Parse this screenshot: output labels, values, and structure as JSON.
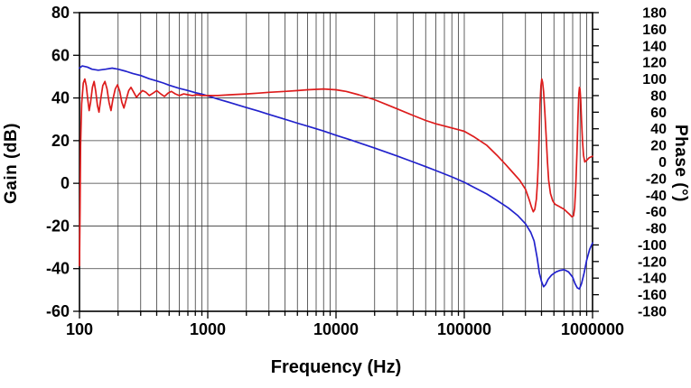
{
  "chart": {
    "x_axis_title": "Frequency (Hz)",
    "y_left_title": "Gain (dB)",
    "y_right_title": "Phase (°)"
  },
  "chart_data": {
    "type": "line",
    "title": "",
    "x_scale": "log",
    "xlabel": "Frequency (Hz)",
    "x_range": [
      100,
      1000000
    ],
    "x_tick_labels": [
      "100",
      "1000",
      "10000",
      "100000",
      "1000000"
    ],
    "grid": true,
    "grid_color": "#3a3a3a",
    "y_left": {
      "label": "Gain (dB)",
      "range": [
        -60,
        80
      ],
      "tick_step": 20,
      "tick_labels": [
        "80",
        "60",
        "40",
        "20",
        "0",
        "-20",
        "-40",
        "-60"
      ]
    },
    "y_right": {
      "label": "Phase (°)",
      "range": [
        -180,
        180
      ],
      "tick_step": 20,
      "tick_labels": [
        "180",
        "160",
        "140",
        "120",
        "100",
        "80",
        "60",
        "40",
        "20",
        "0",
        "-20",
        "-40",
        "-60",
        "-80",
        "-100",
        "-120",
        "-140",
        "-160",
        "-180"
      ]
    },
    "series": [
      {
        "name": "Gain",
        "axis": "left",
        "color": "#2222cc",
        "points": [
          [
            100,
            54
          ],
          [
            105,
            55
          ],
          [
            115,
            54.5
          ],
          [
            125,
            53.5
          ],
          [
            140,
            53
          ],
          [
            160,
            53.5
          ],
          [
            180,
            54
          ],
          [
            200,
            53.5
          ],
          [
            230,
            52.5
          ],
          [
            260,
            51.5
          ],
          [
            300,
            50.5
          ],
          [
            350,
            49
          ],
          [
            400,
            48
          ],
          [
            450,
            47
          ],
          [
            500,
            46
          ],
          [
            600,
            44.5
          ],
          [
            700,
            43.5
          ],
          [
            800,
            42.5
          ],
          [
            900,
            41.8
          ],
          [
            1000,
            41
          ],
          [
            1200,
            39.5
          ],
          [
            1500,
            37.8
          ],
          [
            2000,
            35.5
          ],
          [
            2500,
            33.8
          ],
          [
            3000,
            32.3
          ],
          [
            4000,
            30
          ],
          [
            5000,
            28.2
          ],
          [
            6000,
            26.8
          ],
          [
            8000,
            24.5
          ],
          [
            10000,
            22.5
          ],
          [
            13000,
            20.3
          ],
          [
            16000,
            18.5
          ],
          [
            20000,
            16.5
          ],
          [
            25000,
            14.5
          ],
          [
            30000,
            12.8
          ],
          [
            40000,
            10
          ],
          [
            50000,
            7.8
          ],
          [
            60000,
            6
          ],
          [
            80000,
            3
          ],
          [
            100000,
            0.5
          ],
          [
            120000,
            -2
          ],
          [
            150000,
            -5
          ],
          [
            180000,
            -8
          ],
          [
            220000,
            -11.5
          ],
          [
            260000,
            -15
          ],
          [
            300000,
            -19
          ],
          [
            330000,
            -23
          ],
          [
            350000,
            -27
          ],
          [
            370000,
            -35
          ],
          [
            385000,
            -42
          ],
          [
            400000,
            -46
          ],
          [
            415000,
            -48.5
          ],
          [
            430000,
            -47.5
          ],
          [
            450000,
            -45
          ],
          [
            480000,
            -43
          ],
          [
            520000,
            -41.5
          ],
          [
            560000,
            -40.8
          ],
          [
            600000,
            -40.5
          ],
          [
            650000,
            -41.5
          ],
          [
            700000,
            -44
          ],
          [
            730000,
            -47
          ],
          [
            760000,
            -49
          ],
          [
            790000,
            -49.5
          ],
          [
            820000,
            -47
          ],
          [
            860000,
            -42
          ],
          [
            900000,
            -36
          ],
          [
            950000,
            -31
          ],
          [
            1000000,
            -28
          ]
        ]
      },
      {
        "name": "Phase",
        "axis": "right",
        "color": "#dd1c1c",
        "points": [
          [
            100,
            -125
          ],
          [
            101,
            -60
          ],
          [
            102,
            20
          ],
          [
            104,
            70
          ],
          [
            107,
            95
          ],
          [
            110,
            100
          ],
          [
            113,
            92
          ],
          [
            116,
            75
          ],
          [
            119,
            62
          ],
          [
            122,
            72
          ],
          [
            126,
            90
          ],
          [
            130,
            97
          ],
          [
            134,
            85
          ],
          [
            138,
            68
          ],
          [
            142,
            60
          ],
          [
            147,
            78
          ],
          [
            152,
            92
          ],
          [
            158,
            97
          ],
          [
            164,
            88
          ],
          [
            170,
            72
          ],
          [
            176,
            62
          ],
          [
            182,
            75
          ],
          [
            190,
            88
          ],
          [
            198,
            93
          ],
          [
            206,
            85
          ],
          [
            214,
            72
          ],
          [
            222,
            65
          ],
          [
            232,
            76
          ],
          [
            242,
            86
          ],
          [
            252,
            90
          ],
          [
            265,
            84
          ],
          [
            278,
            78
          ],
          [
            292,
            82
          ],
          [
            310,
            86
          ],
          [
            330,
            84
          ],
          [
            350,
            80
          ],
          [
            375,
            83
          ],
          [
            400,
            86
          ],
          [
            430,
            82
          ],
          [
            460,
            79
          ],
          [
            490,
            83
          ],
          [
            520,
            85
          ],
          [
            560,
            82
          ],
          [
            600,
            80
          ],
          [
            650,
            82
          ],
          [
            700,
            81
          ],
          [
            760,
            80
          ],
          [
            820,
            81
          ],
          [
            900,
            80
          ],
          [
            1000,
            80
          ],
          [
            1200,
            80
          ],
          [
            1500,
            81
          ],
          [
            2000,
            82
          ],
          [
            2500,
            83
          ],
          [
            3000,
            84
          ],
          [
            4000,
            85
          ],
          [
            5000,
            86
          ],
          [
            6000,
            87
          ],
          [
            8000,
            88
          ],
          [
            10000,
            87
          ],
          [
            12000,
            85
          ],
          [
            15000,
            81
          ],
          [
            20000,
            75
          ],
          [
            25000,
            69
          ],
          [
            30000,
            64
          ],
          [
            40000,
            56
          ],
          [
            50000,
            50
          ],
          [
            60000,
            46
          ],
          [
            80000,
            41
          ],
          [
            100000,
            37
          ],
          [
            120000,
            30
          ],
          [
            150000,
            20
          ],
          [
            180000,
            8
          ],
          [
            210000,
            -3
          ],
          [
            240000,
            -13
          ],
          [
            270000,
            -22
          ],
          [
            300000,
            -33
          ],
          [
            320000,
            -45
          ],
          [
            335000,
            -55
          ],
          [
            345000,
            -60
          ],
          [
            355000,
            -57
          ],
          [
            365000,
            -45
          ],
          [
            372000,
            -25
          ],
          [
            378000,
            0
          ],
          [
            384000,
            35
          ],
          [
            390000,
            70
          ],
          [
            396000,
            92
          ],
          [
            402000,
            100
          ],
          [
            408000,
            96
          ],
          [
            415000,
            85
          ],
          [
            425000,
            60
          ],
          [
            435000,
            30
          ],
          [
            445000,
            0
          ],
          [
            455000,
            -22
          ],
          [
            470000,
            -38
          ],
          [
            490000,
            -47
          ],
          [
            510000,
            -51
          ],
          [
            540000,
            -53
          ],
          [
            570000,
            -55
          ],
          [
            600000,
            -57
          ],
          [
            630000,
            -60
          ],
          [
            660000,
            -63
          ],
          [
            690000,
            -66
          ],
          [
            710000,
            -65
          ],
          [
            725000,
            -55
          ],
          [
            740000,
            -30
          ],
          [
            755000,
            10
          ],
          [
            770000,
            55
          ],
          [
            782000,
            82
          ],
          [
            790000,
            90
          ],
          [
            798000,
            88
          ],
          [
            808000,
            75
          ],
          [
            820000,
            50
          ],
          [
            835000,
            25
          ],
          [
            850000,
            8
          ],
          [
            870000,
            0
          ],
          [
            900000,
            2
          ],
          [
            940000,
            5
          ],
          [
            1000000,
            7
          ]
        ]
      }
    ]
  }
}
